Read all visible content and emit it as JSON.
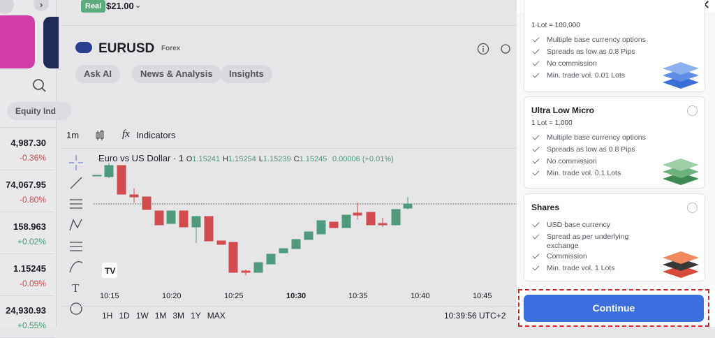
{
  "watchlist": {
    "tab": "Equity Ind",
    "items": [
      {
        "price": "4,987.30",
        "change": "-0.36%"
      },
      {
        "price": "74,067.95",
        "change": "-0.80%"
      },
      {
        "price": "158.963",
        "change": "+0.02%"
      },
      {
        "price": "1.15245",
        "change": "-0.09%"
      },
      {
        "price": "24,930.93",
        "change": "+0.55%"
      }
    ]
  },
  "account": {
    "badge": "Real",
    "balance": "$21.00"
  },
  "instrument": {
    "symbol": "EURUSD",
    "category": "Forex"
  },
  "tabs": [
    "Ask AI",
    "News & Analysis",
    "Insights"
  ],
  "toolbar": {
    "interval": "1m",
    "indicators": "Indicators"
  },
  "chart": {
    "legend": "Euro vs US Dollar · 1",
    "ohlc": [
      {
        "key": "O",
        "value": "1.15241"
      },
      {
        "key": "H",
        "value": "1.15254"
      },
      {
        "key": "L",
        "value": "1.15239"
      },
      {
        "key": "C",
        "value": "1.15245"
      }
    ],
    "change": "0.00006 (+0.01%)",
    "times": [
      "10:15",
      "10:20",
      "10:25",
      "10:30",
      "10:35",
      "10:40",
      "10:45"
    ],
    "ranges": [
      "1H",
      "1D",
      "1W",
      "1M",
      "3M",
      "1Y",
      "MAX"
    ],
    "clock": "10:39:56 UTC+2"
  },
  "panel": {
    "accounts": [
      {
        "lot": "1 Lot = 100,000",
        "features": [
          "Multiple base currency options",
          "Spreads as low as 0.8 Pips",
          "No commission",
          "Min. trade vol. 0.01 Lots"
        ]
      },
      {
        "title": "Ultra Low Micro",
        "lot": "1 Lot = 1,000",
        "features": [
          "Multiple base currency options",
          "Spreads as low as 0.8 Pips",
          "No commission",
          "Min. trade vol. 0.1 Lots"
        ]
      },
      {
        "title": "Shares",
        "features": [
          "USD base currency",
          "Spread as per underlying exchange",
          "Commission",
          "Min. trade vol. 1 Lots"
        ]
      }
    ],
    "continue": "Continue"
  }
}
